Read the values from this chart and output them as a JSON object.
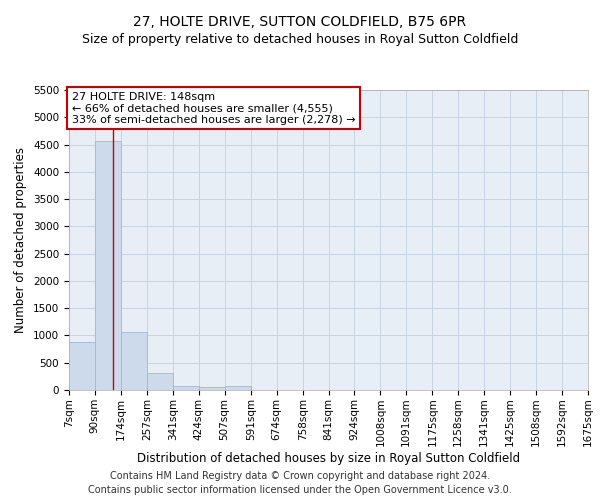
{
  "title": "27, HOLTE DRIVE, SUTTON COLDFIELD, B75 6PR",
  "subtitle": "Size of property relative to detached houses in Royal Sutton Coldfield",
  "xlabel": "Distribution of detached houses by size in Royal Sutton Coldfield",
  "ylabel": "Number of detached properties",
  "footer_line1": "Contains HM Land Registry data © Crown copyright and database right 2024.",
  "footer_line2": "Contains public sector information licensed under the Open Government Licence v3.0.",
  "annotation_line1": "27 HOLTE DRIVE: 148sqm",
  "annotation_line2": "← 66% of detached houses are smaller (4,555)",
  "annotation_line3": "33% of semi-detached houses are larger (2,278) →",
  "bin_edges": [
    7,
    90,
    174,
    257,
    341,
    424,
    507,
    591,
    674,
    758,
    841,
    924,
    1008,
    1091,
    1175,
    1258,
    1341,
    1425,
    1508,
    1592,
    1675
  ],
  "bin_labels": [
    "7sqm",
    "90sqm",
    "174sqm",
    "257sqm",
    "341sqm",
    "424sqm",
    "507sqm",
    "591sqm",
    "674sqm",
    "758sqm",
    "841sqm",
    "924sqm",
    "1008sqm",
    "1091sqm",
    "1175sqm",
    "1258sqm",
    "1341sqm",
    "1425sqm",
    "1508sqm",
    "1592sqm",
    "1675sqm"
  ],
  "bar_heights": [
    880,
    4560,
    1060,
    320,
    70,
    55,
    65,
    0,
    0,
    0,
    0,
    0,
    0,
    0,
    0,
    0,
    0,
    0,
    0,
    0
  ],
  "bar_color": "#ccdaeb",
  "bar_edgecolor": "#a0b8d0",
  "vline_color": "#cc0000",
  "vline_x": 148,
  "annotation_box_edgecolor": "#cc0000",
  "annotation_box_facecolor": "#ffffff",
  "ylim": [
    0,
    5500
  ],
  "yticks": [
    0,
    500,
    1000,
    1500,
    2000,
    2500,
    3000,
    3500,
    4000,
    4500,
    5000,
    5500
  ],
  "grid_color": "#c8d4e4",
  "bg_color": "#e8eef6",
  "title_fontsize": 10,
  "subtitle_fontsize": 9,
  "axis_label_fontsize": 8.5,
  "tick_fontsize": 7.5,
  "annotation_fontsize": 8,
  "footer_fontsize": 7
}
